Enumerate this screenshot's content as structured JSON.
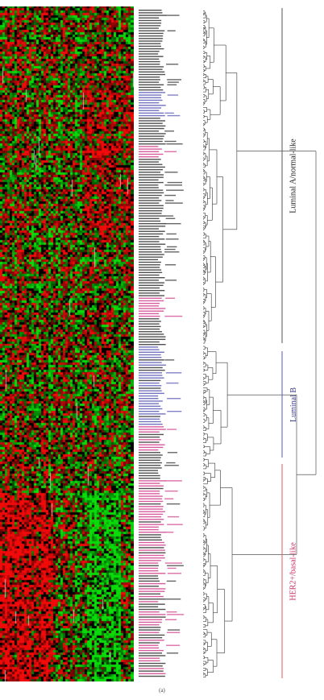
{
  "panel_caption": "(a)",
  "groups": [
    {
      "label": "Luminal A/normal-like",
      "color": "#222222"
    },
    {
      "label": "Luminal B",
      "color": "#3a3a8c"
    },
    {
      "label": "HER2+/basal-like",
      "color": "#cc3366"
    }
  ],
  "colors": {
    "heatmap_up": "#e0201e",
    "heatmap_down": "#22c022",
    "heatmap_zero": "#000000",
    "label_black": "#333333",
    "label_blue": "#5a5ab4",
    "label_pink": "#d0408c",
    "dendrogram": "#333333",
    "group_bar_black": "#555555",
    "group_bar_red": "#e05a5a"
  }
}
